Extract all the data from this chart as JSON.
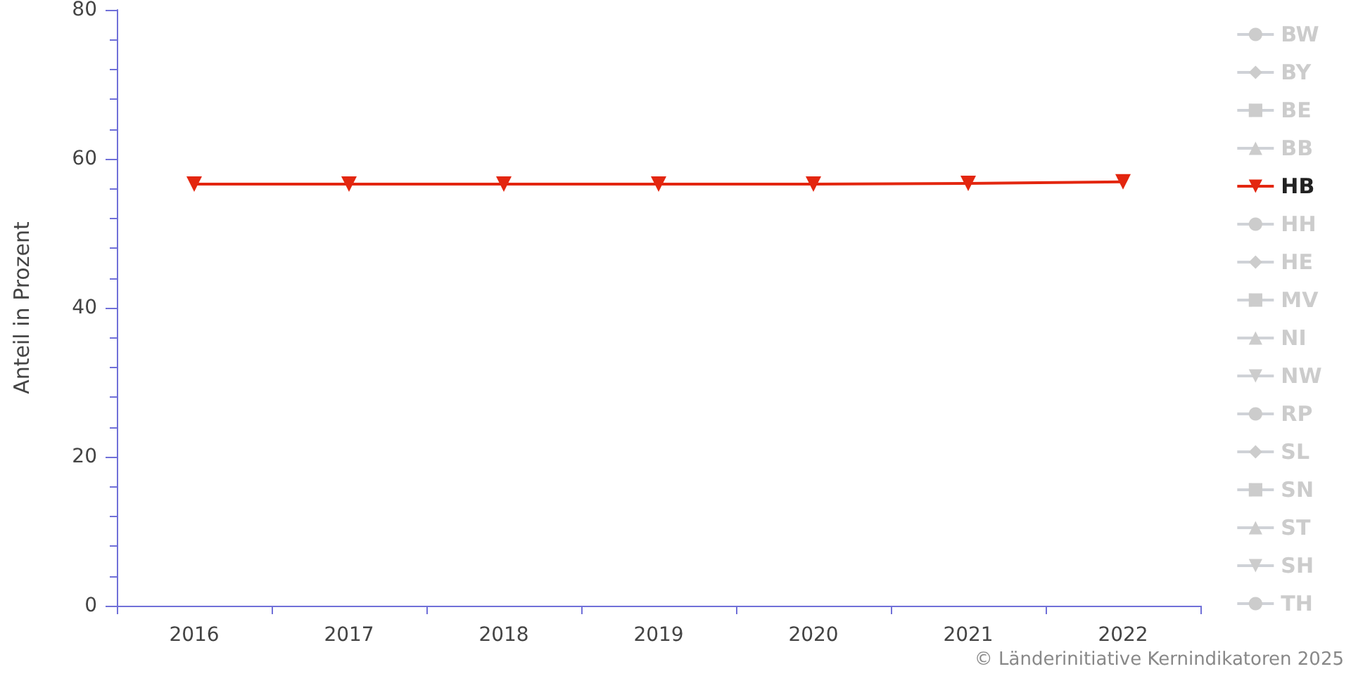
{
  "chart_data": {
    "type": "line",
    "ylabel": "Anteil in Prozent",
    "categories": [
      "2016",
      "2017",
      "2018",
      "2019",
      "2020",
      "2021",
      "2022"
    ],
    "ylim": [
      0,
      80
    ],
    "yticks": [
      0,
      20,
      40,
      60,
      80
    ],
    "grid": false,
    "legend": "right",
    "annotations": [
      "© Länderinitiative Kernindikatoren 2025"
    ],
    "series": [
      {
        "name": "BW",
        "color": "#cccccc",
        "marker": "circle",
        "values": [
          null,
          null,
          null,
          null,
          null,
          null,
          null
        ]
      },
      {
        "name": "BY",
        "color": "#cccccc",
        "marker": "diamond",
        "values": [
          null,
          null,
          null,
          null,
          null,
          null,
          null
        ]
      },
      {
        "name": "BE",
        "color": "#cccccc",
        "marker": "square",
        "values": [
          null,
          null,
          null,
          null,
          null,
          null,
          null
        ]
      },
      {
        "name": "BB",
        "color": "#cccccc",
        "marker": "triangle",
        "values": [
          null,
          null,
          null,
          null,
          null,
          null,
          null
        ]
      },
      {
        "name": "HB",
        "color": "#e3260f",
        "marker": "triangle-down",
        "values": [
          56.6,
          56.6,
          56.6,
          56.6,
          56.6,
          56.7,
          56.9
        ]
      },
      {
        "name": "HH",
        "color": "#cccccc",
        "marker": "circle",
        "values": [
          null,
          null,
          null,
          null,
          null,
          null,
          null
        ]
      },
      {
        "name": "HE",
        "color": "#cccccc",
        "marker": "diamond",
        "values": [
          null,
          null,
          null,
          null,
          null,
          null,
          null
        ]
      },
      {
        "name": "MV",
        "color": "#cccccc",
        "marker": "square",
        "values": [
          null,
          null,
          null,
          null,
          null,
          null,
          null
        ]
      },
      {
        "name": "NI",
        "color": "#cccccc",
        "marker": "triangle",
        "values": [
          null,
          null,
          null,
          null,
          null,
          null,
          null
        ]
      },
      {
        "name": "NW",
        "color": "#cccccc",
        "marker": "triangle-down",
        "values": [
          null,
          null,
          null,
          null,
          null,
          null,
          null
        ]
      },
      {
        "name": "RP",
        "color": "#cccccc",
        "marker": "circle",
        "values": [
          null,
          null,
          null,
          null,
          null,
          null,
          null
        ]
      },
      {
        "name": "SL",
        "color": "#cccccc",
        "marker": "diamond",
        "values": [
          null,
          null,
          null,
          null,
          null,
          null,
          null
        ]
      },
      {
        "name": "SN",
        "color": "#cccccc",
        "marker": "square",
        "values": [
          null,
          null,
          null,
          null,
          null,
          null,
          null
        ]
      },
      {
        "name": "ST",
        "color": "#cccccc",
        "marker": "triangle",
        "values": [
          null,
          null,
          null,
          null,
          null,
          null,
          null
        ]
      },
      {
        "name": "SH",
        "color": "#cccccc",
        "marker": "triangle-down",
        "values": [
          null,
          null,
          null,
          null,
          null,
          null,
          null
        ]
      },
      {
        "name": "TH",
        "color": "#cccccc",
        "marker": "circle",
        "values": [
          null,
          null,
          null,
          null,
          null,
          null,
          null
        ]
      }
    ]
  }
}
